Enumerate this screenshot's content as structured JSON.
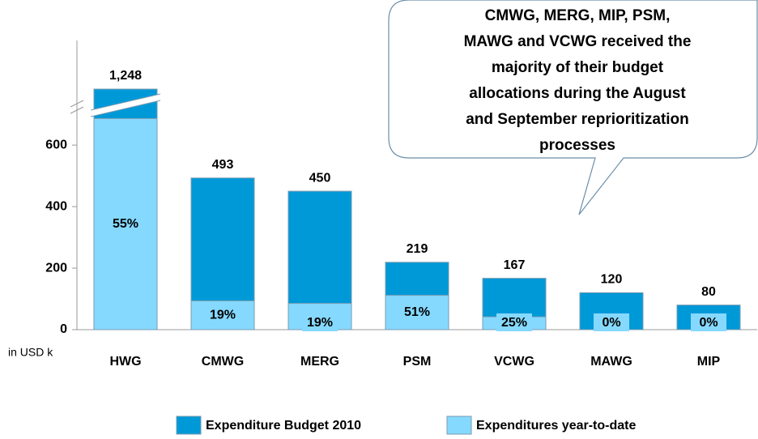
{
  "chart_data": {
    "type": "bar",
    "annotation": [
      "CMWG, MERG, MIP, PSM,",
      "MAWG and VCWG received the",
      "majority of their budget",
      "allocations during the August",
      "and September reprioritization",
      "processes"
    ],
    "y_unit_label": "in USD k",
    "categories": [
      "HWG",
      "CMWG",
      "MERG",
      "PSM",
      "VCWG",
      "MAWG",
      "MIP"
    ],
    "series": [
      {
        "name": "Expenditure Budget 2010",
        "color": "#0099d8",
        "values": [
          1248,
          493,
          450,
          219,
          167,
          120,
          80
        ],
        "value_labels": [
          "1,248",
          "493",
          "450",
          "219",
          "167",
          "120",
          "80"
        ]
      },
      {
        "name": "Expenditures year-to-date",
        "color": "#85d9ff",
        "values": [
          55,
          19,
          19,
          51,
          25,
          0,
          0
        ],
        "value_labels": [
          "55%",
          "19%",
          "19%",
          "51%",
          "25%",
          "0%",
          "0%"
        ]
      }
    ],
    "ylim": [
      0,
      940
    ],
    "yticks": [
      0,
      200,
      400,
      600
    ]
  }
}
